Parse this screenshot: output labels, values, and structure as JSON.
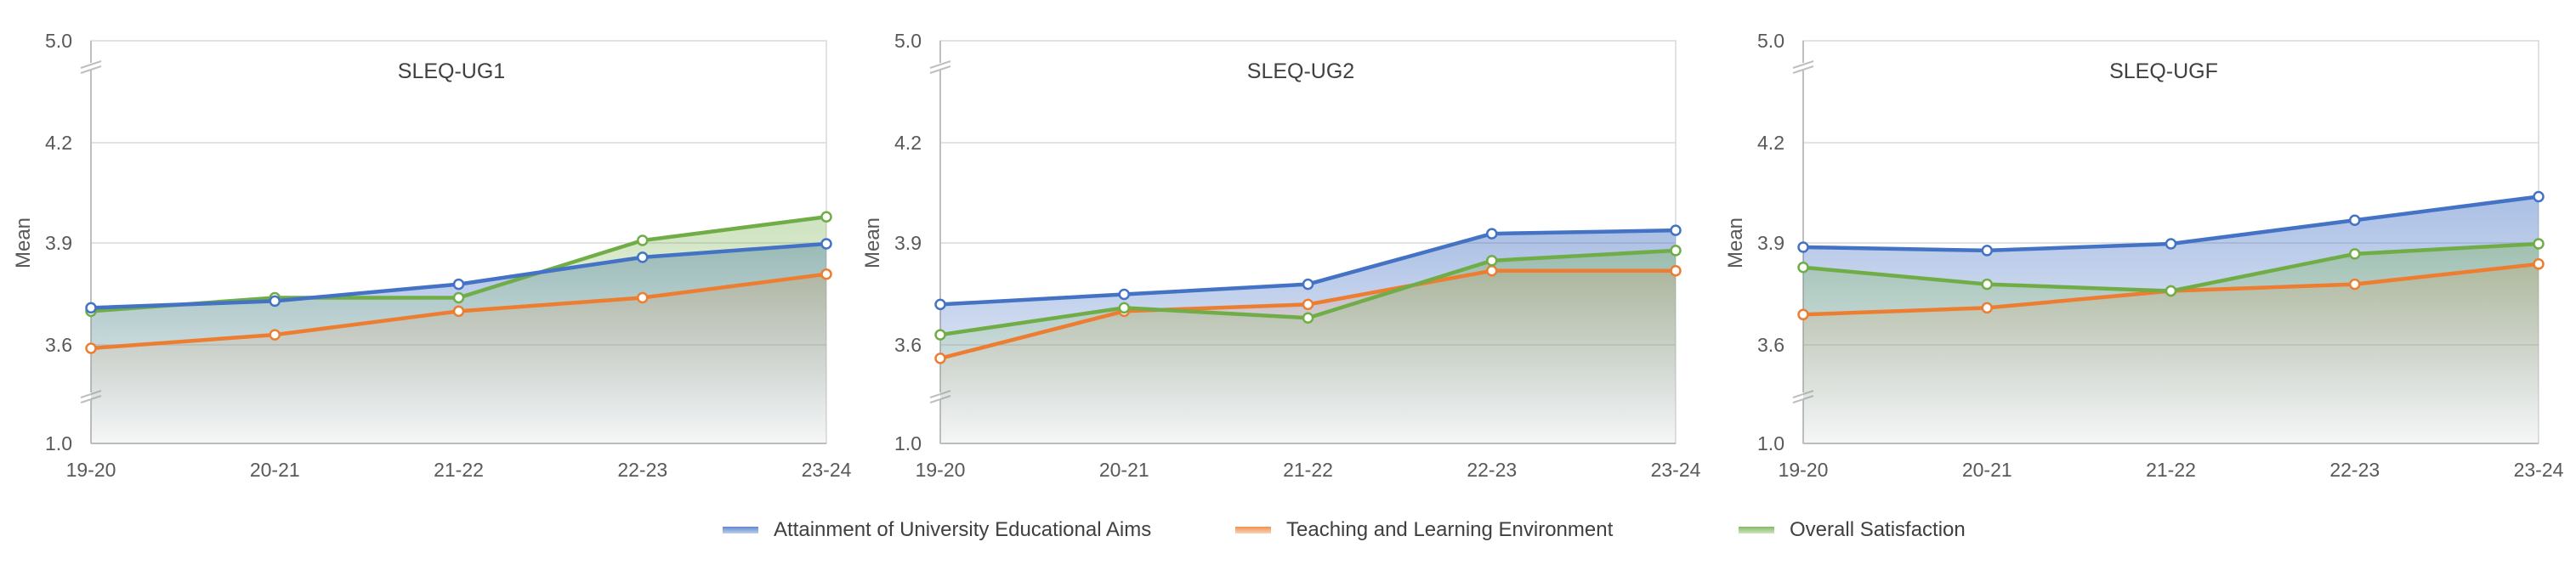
{
  "chart_data": [
    {
      "type": "line",
      "title": "SLEQ-UG1",
      "ylabel": "Mean",
      "categories": [
        "19-20",
        "20-21",
        "21-22",
        "22-23",
        "23-24"
      ],
      "yticks": [
        "5.0",
        "4.2",
        "3.9",
        "3.6",
        "1.0"
      ],
      "axis_break": true,
      "grid": true,
      "series": [
        {
          "name": "Attainment of University Educational Aims",
          "values": [
            3.71,
            3.73,
            3.78,
            3.86,
            3.9
          ]
        },
        {
          "name": "Teaching and Learning Environment",
          "values": [
            3.59,
            3.63,
            3.7,
            3.74,
            3.81
          ]
        },
        {
          "name": "Overall Satisfaction",
          "values": [
            3.7,
            3.74,
            3.74,
            3.91,
            3.98
          ]
        }
      ]
    },
    {
      "type": "line",
      "title": "SLEQ-UG2",
      "ylabel": "Mean",
      "categories": [
        "19-20",
        "20-21",
        "21-22",
        "22-23",
        "23-24"
      ],
      "yticks": [
        "5.0",
        "4.2",
        "3.9",
        "3.6",
        "1.0"
      ],
      "axis_break": true,
      "grid": true,
      "series": [
        {
          "name": "Attainment of University Educational Aims",
          "values": [
            3.72,
            3.75,
            3.78,
            3.93,
            3.94
          ]
        },
        {
          "name": "Teaching and Learning Environment",
          "values": [
            3.56,
            3.7,
            3.72,
            3.82,
            3.82
          ]
        },
        {
          "name": "Overall Satisfaction",
          "values": [
            3.63,
            3.71,
            3.68,
            3.85,
            3.88
          ]
        }
      ]
    },
    {
      "type": "line",
      "title": "SLEQ-UGF",
      "ylabel": "Mean",
      "categories": [
        "19-20",
        "20-21",
        "21-22",
        "22-23",
        "23-24"
      ],
      "yticks": [
        "5.0",
        "4.2",
        "3.9",
        "3.6",
        "1.0"
      ],
      "axis_break": true,
      "grid": true,
      "series": [
        {
          "name": "Attainment of University Educational Aims",
          "values": [
            3.89,
            3.88,
            3.9,
            3.97,
            4.04
          ]
        },
        {
          "name": "Teaching and Learning Environment",
          "values": [
            3.69,
            3.71,
            3.76,
            3.78,
            3.84
          ]
        },
        {
          "name": "Overall Satisfaction",
          "values": [
            3.83,
            3.78,
            3.76,
            3.87,
            3.9
          ]
        }
      ]
    }
  ],
  "legend": [
    {
      "label": "Attainment of University Educational Aims",
      "color": "#4472c4"
    },
    {
      "label": "Teaching and Learning Environment",
      "color": "#ed7d31"
    },
    {
      "label": "Overall Satisfaction",
      "color": "#70ad47"
    }
  ],
  "colors": {
    "attainment": "#4472c4",
    "teaching": "#ed7d31",
    "satisfaction": "#70ad47",
    "grid": "#d9d9d9",
    "axis": "#bfbfbf"
  }
}
